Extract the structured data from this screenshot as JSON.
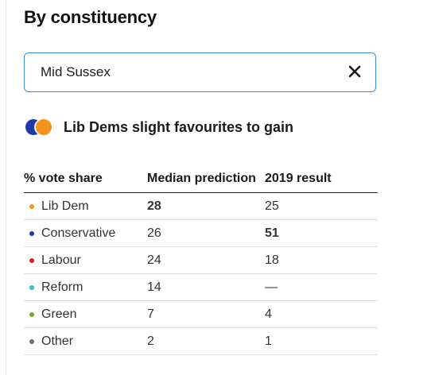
{
  "heading": "By constituency",
  "search": {
    "value": "Mid Sussex",
    "clear_icon": "close-icon"
  },
  "verdict": {
    "text": "Lib Dems slight favourites to gain",
    "colors": {
      "from": "#1f3aa8",
      "to": "#f4921e"
    }
  },
  "table": {
    "headers": [
      "% vote share",
      "Median prediction",
      "2019 result"
    ],
    "rows": [
      {
        "party": "Lib Dem",
        "color": "#f4921e",
        "prediction": "28",
        "result": "25",
        "bold": "prediction"
      },
      {
        "party": "Conservative",
        "color": "#1f3aa8",
        "prediction": "26",
        "result": "51",
        "bold": "result"
      },
      {
        "party": "Labour",
        "color": "#d81e1e",
        "prediction": "24",
        "result": "18",
        "bold": ""
      },
      {
        "party": "Reform",
        "color": "#3bb8c9",
        "prediction": "14",
        "result": "—",
        "bold": ""
      },
      {
        "party": "Green",
        "color": "#6ab023",
        "prediction": "7",
        "result": "4",
        "bold": ""
      },
      {
        "party": "Other",
        "color": "#6e6e6e",
        "prediction": "2",
        "result": "1",
        "bold": ""
      }
    ]
  }
}
